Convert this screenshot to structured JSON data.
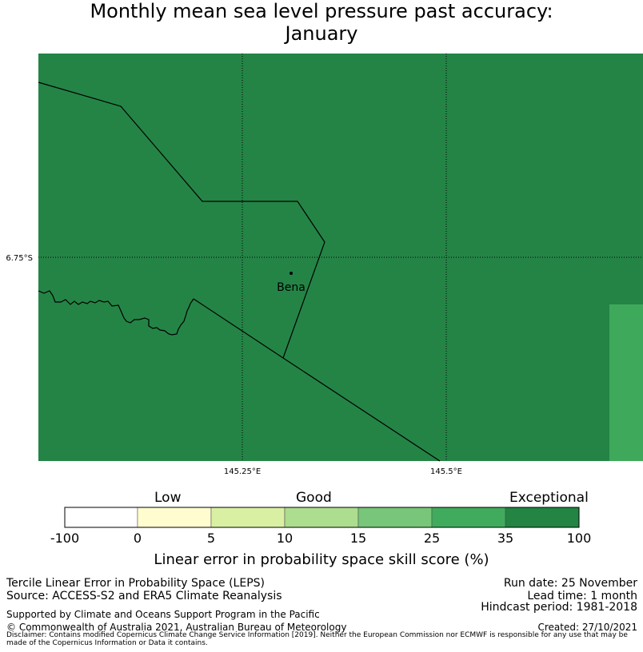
{
  "title": {
    "line1": "Monthly mean sea level pressure past accuracy:",
    "line2": "January"
  },
  "map": {
    "colors": {
      "ocean_land": "#248446",
      "cell_lighter": "#3fa95b",
      "border": "#000000"
    },
    "gridlines": {
      "lat_label": "6.75°S",
      "lon_labels": [
        "145.25°E",
        "145.5°E"
      ]
    },
    "town": {
      "name": "Bena"
    }
  },
  "colorbar": {
    "category_labels": [
      "Low",
      "Good",
      "Exceptional"
    ],
    "ticks": [
      "-100",
      "0",
      "5",
      "10",
      "15",
      "25",
      "35",
      "100"
    ],
    "colors": [
      "#ffffff",
      "#fffdd0",
      "#d9f0a3",
      "#addd8e",
      "#78c679",
      "#41ab5d",
      "#238443"
    ],
    "title": "Linear error in probability space skill score (%)"
  },
  "footer": {
    "left": {
      "line1": "Tercile Linear Error in Probability Space (LEPS)",
      "line2": "Source: ACCESS-S2 and ERA5 Climate Reanalysis",
      "line3": "Supported by Climate and Oceans Support Program in the Pacific",
      "line4": "© Commonwealth of Australia 2021, Australian Bureau of Meteorology"
    },
    "right": {
      "run_date": "Run date: 25 November",
      "lead_time": "Lead time: 1 month",
      "hindcast": "Hindcast period: 1981-2018",
      "created": "Created: 27/10/2021"
    },
    "disclaimer": "Disclaimer: Contains modified Copernicus Climate Change Service Information [2019]. Neither the European Commission nor ECMWF is responsible for any use that may be made of the Copernicus Information or Data it contains."
  }
}
